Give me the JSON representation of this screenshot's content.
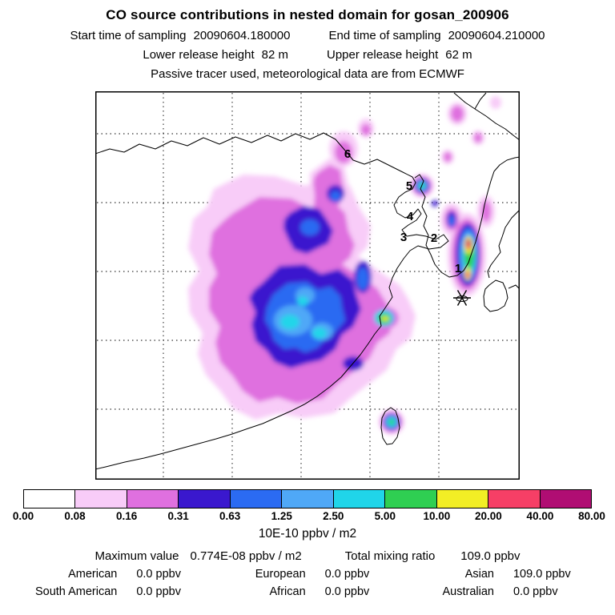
{
  "title": "CO  source contributions in nested domain for gosan_200906",
  "header": {
    "start_label": "Start time of sampling",
    "start_value": "20090604.180000",
    "end_label": "End time of sampling",
    "end_value": "20090604.210000",
    "lower_label": "Lower release height",
    "lower_value": "82 m",
    "upper_label": "Upper release height",
    "upper_value": "62 m",
    "note": "Passive tracer used, meteorological data are from ECMWF"
  },
  "map": {
    "receptor_labels": [
      "1",
      "2",
      "3",
      "4",
      "5",
      "6"
    ],
    "site_name": "gosan"
  },
  "colorbar": {
    "units": "10E-10 ppbv / m2",
    "ticks": [
      "0.00",
      "0.08",
      "0.16",
      "0.31",
      "0.63",
      "1.25",
      "2.50",
      "5.00",
      "10.00",
      "20.00",
      "40.00",
      "80.00"
    ],
    "colors": [
      "#ffffff",
      "#f8ccf8",
      "#df70df",
      "#3a18ce",
      "#2b6bf2",
      "#4fa8f7",
      "#20d5e9",
      "#2fcf52",
      "#f2ee25",
      "#f63f66",
      "#b00d73"
    ]
  },
  "stats": {
    "maximum_label": "Maximum value",
    "maximum_value": "0.774E-08 ppbv / m2",
    "total_label": "Total mixing ratio",
    "total_value": "109.0 ppbv",
    "regions": [
      {
        "label": "American",
        "value": "0.0 ppbv"
      },
      {
        "label": "European",
        "value": "0.0 ppbv"
      },
      {
        "label": "Asian",
        "value": "109.0 ppbv"
      },
      {
        "label": "South American",
        "value": "0.0 ppbv"
      },
      {
        "label": "African",
        "value": "0.0 ppbv"
      },
      {
        "label": "Australian",
        "value": "0.0 ppbv"
      }
    ]
  },
  "chart_data": {
    "type": "heatmap",
    "title": "CO source contributions in nested domain for gosan_200906",
    "units": "10E-10 ppbv / m2",
    "colorbar_levels": [
      0.0,
      0.08,
      0.16,
      0.31,
      0.63,
      1.25,
      2.5,
      5.0,
      10.0,
      20.0,
      40.0,
      80.0
    ],
    "colorbar_colors": [
      "#ffffff",
      "#f8ccf8",
      "#df70df",
      "#3a18ce",
      "#2b6bf2",
      "#4fa8f7",
      "#20d5e9",
      "#2fcf52",
      "#f2ee25",
      "#f63f66",
      "#b00d73"
    ],
    "geographic_region": "East Asia: eastern China, Korean peninsula, Japan, Taiwan; dashed lat/lon grid",
    "receptor_site": "Gosan (asterisk marker south of the Korean peninsula)",
    "numbered_points": [
      1,
      2,
      3,
      4,
      5,
      6
    ],
    "maximum_value": "0.774E-08 ppbv / m2",
    "total_mixing_ratio": "109.0 ppbv",
    "regional_mixing_ratios": {
      "American": "0.0 ppbv",
      "European": "0.0 ppbv",
      "Asian": "109.0 ppbv",
      "South American": "0.0 ppbv",
      "African": "0.0 ppbv",
      "Australian": "0.0 ppbv"
    },
    "features": [
      {
        "name": "broad plume over eastern China",
        "approx_level_range": [
          0.08,
          5.0
        ]
      },
      {
        "name": "intense maximum along Korean west coast",
        "approx_level_range": [
          10.0,
          80.0
        ]
      },
      {
        "name": "isolated spot near Taiwan",
        "approx_level_range": [
          1.25,
          5.0
        ]
      },
      {
        "name": "scattered weak spots northeast of Korea",
        "approx_level_range": [
          0.08,
          0.31
        ]
      }
    ]
  }
}
